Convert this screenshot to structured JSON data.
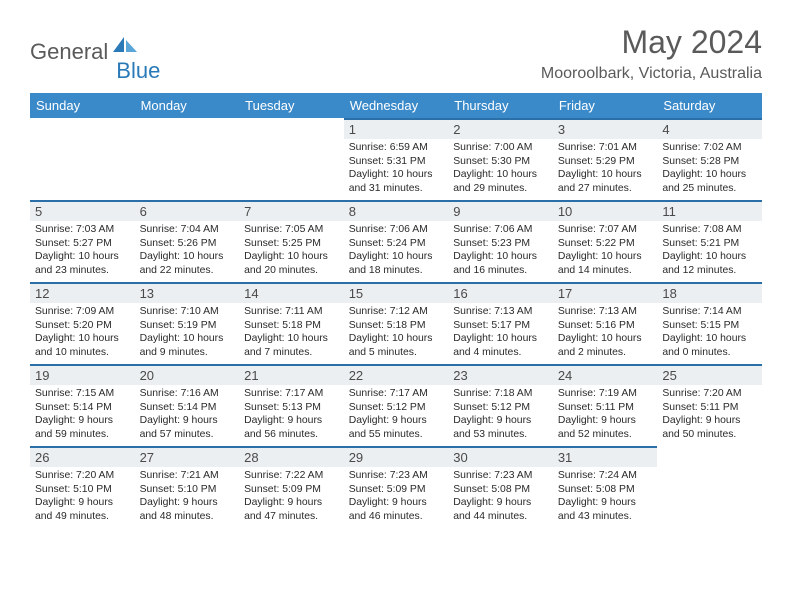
{
  "logo": {
    "text_general": "General",
    "text_blue": "Blue",
    "icon_color_light": "#5aa6d8",
    "icon_color_dark": "#2a7ab8"
  },
  "header": {
    "title": "May 2024",
    "location": "Mooroolbark, Victoria, Australia"
  },
  "colors": {
    "header_bg": "#3a89c9",
    "header_text": "#ffffff",
    "daynum_bg": "#eceff1",
    "daynum_border": "#2a6fa8",
    "text_main": "#2a2a2a",
    "text_muted": "#5a5a5a"
  },
  "weekdays": [
    "Sunday",
    "Monday",
    "Tuesday",
    "Wednesday",
    "Thursday",
    "Friday",
    "Saturday"
  ],
  "weeks": [
    [
      null,
      null,
      null,
      {
        "n": "1",
        "sunrise": "Sunrise: 6:59 AM",
        "sunset": "Sunset: 5:31 PM",
        "daylight": "Daylight: 10 hours and 31 minutes."
      },
      {
        "n": "2",
        "sunrise": "Sunrise: 7:00 AM",
        "sunset": "Sunset: 5:30 PM",
        "daylight": "Daylight: 10 hours and 29 minutes."
      },
      {
        "n": "3",
        "sunrise": "Sunrise: 7:01 AM",
        "sunset": "Sunset: 5:29 PM",
        "daylight": "Daylight: 10 hours and 27 minutes."
      },
      {
        "n": "4",
        "sunrise": "Sunrise: 7:02 AM",
        "sunset": "Sunset: 5:28 PM",
        "daylight": "Daylight: 10 hours and 25 minutes."
      }
    ],
    [
      {
        "n": "5",
        "sunrise": "Sunrise: 7:03 AM",
        "sunset": "Sunset: 5:27 PM",
        "daylight": "Daylight: 10 hours and 23 minutes."
      },
      {
        "n": "6",
        "sunrise": "Sunrise: 7:04 AM",
        "sunset": "Sunset: 5:26 PM",
        "daylight": "Daylight: 10 hours and 22 minutes."
      },
      {
        "n": "7",
        "sunrise": "Sunrise: 7:05 AM",
        "sunset": "Sunset: 5:25 PM",
        "daylight": "Daylight: 10 hours and 20 minutes."
      },
      {
        "n": "8",
        "sunrise": "Sunrise: 7:06 AM",
        "sunset": "Sunset: 5:24 PM",
        "daylight": "Daylight: 10 hours and 18 minutes."
      },
      {
        "n": "9",
        "sunrise": "Sunrise: 7:06 AM",
        "sunset": "Sunset: 5:23 PM",
        "daylight": "Daylight: 10 hours and 16 minutes."
      },
      {
        "n": "10",
        "sunrise": "Sunrise: 7:07 AM",
        "sunset": "Sunset: 5:22 PM",
        "daylight": "Daylight: 10 hours and 14 minutes."
      },
      {
        "n": "11",
        "sunrise": "Sunrise: 7:08 AM",
        "sunset": "Sunset: 5:21 PM",
        "daylight": "Daylight: 10 hours and 12 minutes."
      }
    ],
    [
      {
        "n": "12",
        "sunrise": "Sunrise: 7:09 AM",
        "sunset": "Sunset: 5:20 PM",
        "daylight": "Daylight: 10 hours and 10 minutes."
      },
      {
        "n": "13",
        "sunrise": "Sunrise: 7:10 AM",
        "sunset": "Sunset: 5:19 PM",
        "daylight": "Daylight: 10 hours and 9 minutes."
      },
      {
        "n": "14",
        "sunrise": "Sunrise: 7:11 AM",
        "sunset": "Sunset: 5:18 PM",
        "daylight": "Daylight: 10 hours and 7 minutes."
      },
      {
        "n": "15",
        "sunrise": "Sunrise: 7:12 AM",
        "sunset": "Sunset: 5:18 PM",
        "daylight": "Daylight: 10 hours and 5 minutes."
      },
      {
        "n": "16",
        "sunrise": "Sunrise: 7:13 AM",
        "sunset": "Sunset: 5:17 PM",
        "daylight": "Daylight: 10 hours and 4 minutes."
      },
      {
        "n": "17",
        "sunrise": "Sunrise: 7:13 AM",
        "sunset": "Sunset: 5:16 PM",
        "daylight": "Daylight: 10 hours and 2 minutes."
      },
      {
        "n": "18",
        "sunrise": "Sunrise: 7:14 AM",
        "sunset": "Sunset: 5:15 PM",
        "daylight": "Daylight: 10 hours and 0 minutes."
      }
    ],
    [
      {
        "n": "19",
        "sunrise": "Sunrise: 7:15 AM",
        "sunset": "Sunset: 5:14 PM",
        "daylight": "Daylight: 9 hours and 59 minutes."
      },
      {
        "n": "20",
        "sunrise": "Sunrise: 7:16 AM",
        "sunset": "Sunset: 5:14 PM",
        "daylight": "Daylight: 9 hours and 57 minutes."
      },
      {
        "n": "21",
        "sunrise": "Sunrise: 7:17 AM",
        "sunset": "Sunset: 5:13 PM",
        "daylight": "Daylight: 9 hours and 56 minutes."
      },
      {
        "n": "22",
        "sunrise": "Sunrise: 7:17 AM",
        "sunset": "Sunset: 5:12 PM",
        "daylight": "Daylight: 9 hours and 55 minutes."
      },
      {
        "n": "23",
        "sunrise": "Sunrise: 7:18 AM",
        "sunset": "Sunset: 5:12 PM",
        "daylight": "Daylight: 9 hours and 53 minutes."
      },
      {
        "n": "24",
        "sunrise": "Sunrise: 7:19 AM",
        "sunset": "Sunset: 5:11 PM",
        "daylight": "Daylight: 9 hours and 52 minutes."
      },
      {
        "n": "25",
        "sunrise": "Sunrise: 7:20 AM",
        "sunset": "Sunset: 5:11 PM",
        "daylight": "Daylight: 9 hours and 50 minutes."
      }
    ],
    [
      {
        "n": "26",
        "sunrise": "Sunrise: 7:20 AM",
        "sunset": "Sunset: 5:10 PM",
        "daylight": "Daylight: 9 hours and 49 minutes."
      },
      {
        "n": "27",
        "sunrise": "Sunrise: 7:21 AM",
        "sunset": "Sunset: 5:10 PM",
        "daylight": "Daylight: 9 hours and 48 minutes."
      },
      {
        "n": "28",
        "sunrise": "Sunrise: 7:22 AM",
        "sunset": "Sunset: 5:09 PM",
        "daylight": "Daylight: 9 hours and 47 minutes."
      },
      {
        "n": "29",
        "sunrise": "Sunrise: 7:23 AM",
        "sunset": "Sunset: 5:09 PM",
        "daylight": "Daylight: 9 hours and 46 minutes."
      },
      {
        "n": "30",
        "sunrise": "Sunrise: 7:23 AM",
        "sunset": "Sunset: 5:08 PM",
        "daylight": "Daylight: 9 hours and 44 minutes."
      },
      {
        "n": "31",
        "sunrise": "Sunrise: 7:24 AM",
        "sunset": "Sunset: 5:08 PM",
        "daylight": "Daylight: 9 hours and 43 minutes."
      },
      null
    ]
  ]
}
